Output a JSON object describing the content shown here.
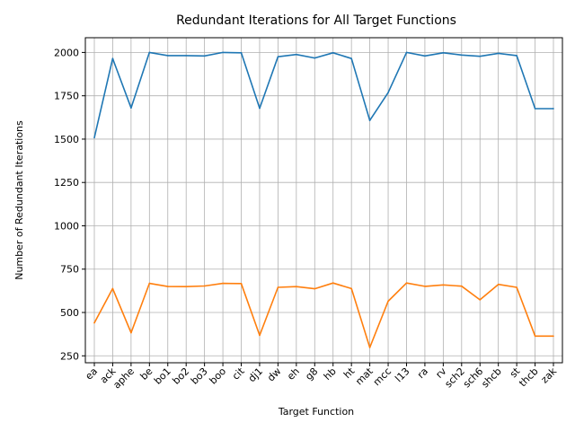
{
  "chart_data": {
    "type": "line",
    "title": "Redundant Iterations for All Target Functions",
    "xlabel": "Target Function",
    "ylabel": "Number of Redundant Iterations",
    "categories": [
      "ea",
      "ack",
      "aphe",
      "be",
      "bo1",
      "bo2",
      "bo3",
      "boo",
      "cit",
      "dj1",
      "dw",
      "eh",
      "g8",
      "hb",
      "ht",
      "mat",
      "mcc",
      "l13",
      "ra",
      "rv",
      "sch2",
      "sch6",
      "shcb",
      "st",
      "thcb",
      "zak"
    ],
    "series": [
      {
        "color": "#1f77b4",
        "values": [
          1508,
          1965,
          1680,
          2000,
          1982,
          1982,
          1980,
          2000,
          1998,
          1678,
          1975,
          1988,
          1968,
          1998,
          1965,
          1608,
          1768,
          2000,
          1980,
          1998,
          1985,
          1978,
          1995,
          1982,
          1676,
          1676
        ]
      },
      {
        "color": "#ff7f0e",
        "values": [
          440,
          638,
          383,
          668,
          650,
          649,
          653,
          668,
          667,
          368,
          645,
          649,
          637,
          670,
          638,
          298,
          565,
          670,
          651,
          659,
          652,
          573,
          662,
          645,
          364,
          364
        ]
      }
    ],
    "y_ticks": [
      250,
      500,
      750,
      1000,
      1250,
      1500,
      1750,
      2000
    ],
    "ylim": [
      210,
      2085
    ],
    "grid": true,
    "legend": "none"
  }
}
